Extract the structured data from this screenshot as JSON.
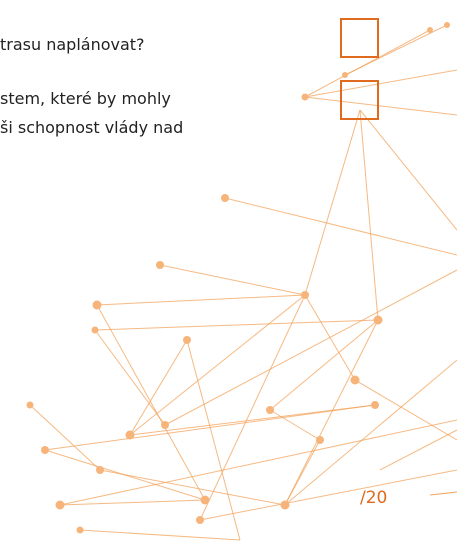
{
  "question": "trasu naplánovat?",
  "body": [
    "stem, které by mohly",
    "ši schopnost vlády nad"
  ],
  "page_number": "/20"
}
